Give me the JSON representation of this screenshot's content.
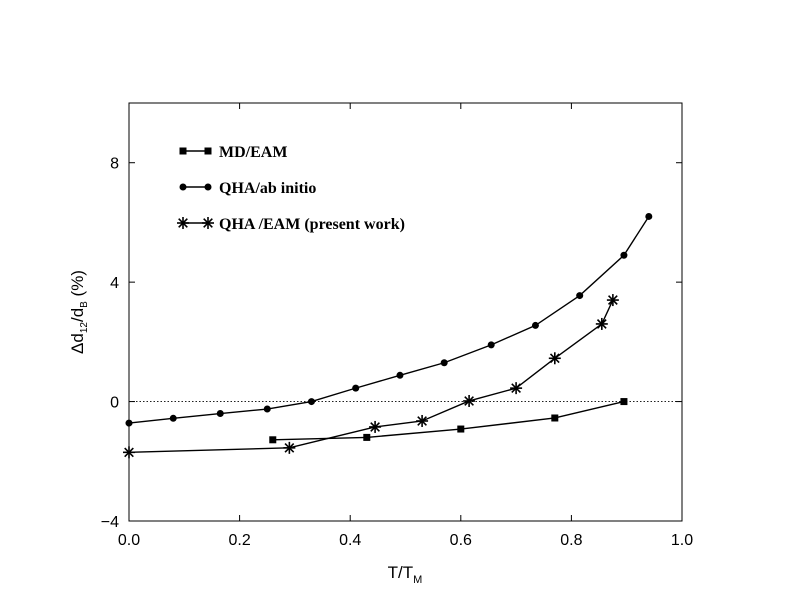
{
  "chart_data": {
    "type": "line",
    "xlabel": {
      "main": "T/T",
      "sub": "M"
    },
    "ylabel": {
      "delta": "Δ",
      "d1": "d",
      "sub1": "12",
      "slash": "/d",
      "sub2": "B",
      "rest": " (%)"
    },
    "xlim": [
      0.0,
      1.0
    ],
    "ylim": [
      -4,
      10
    ],
    "xticks": [
      "0.0",
      "0.2",
      "0.4",
      "0.6",
      "0.8",
      "1.0"
    ],
    "xtick_values": [
      0.0,
      0.2,
      0.4,
      0.6,
      0.8,
      1.0
    ],
    "yticks": [
      "−4",
      "0",
      "4",
      "8"
    ],
    "ytick_values": [
      -4,
      0,
      4,
      8
    ],
    "zero_line": true,
    "grid": false,
    "legend_position": "top-left",
    "series": [
      {
        "name": "MD/EAM",
        "marker": "square",
        "x": [
          0.26,
          0.43,
          0.6,
          0.77,
          0.895
        ],
        "y": [
          -1.28,
          -1.2,
          -0.92,
          -0.55,
          0.0
        ]
      },
      {
        "name": "QHA/ab initio",
        "marker": "circle",
        "x": [
          0.0,
          0.08,
          0.165,
          0.25,
          0.33,
          0.41,
          0.49,
          0.57,
          0.655,
          0.735,
          0.815,
          0.895,
          0.94
        ],
        "y": [
          -0.72,
          -0.56,
          -0.4,
          -0.25,
          0.0,
          0.45,
          0.88,
          1.3,
          1.9,
          2.55,
          3.55,
          4.9,
          6.2
        ]
      },
      {
        "name": "QHA /EAM (present work)",
        "marker": "asterisk",
        "x": [
          0.0,
          0.29,
          0.445,
          0.53,
          0.615,
          0.7,
          0.77,
          0.855,
          0.875
        ],
        "y": [
          -1.7,
          -1.55,
          -0.85,
          -0.65,
          0.02,
          0.45,
          1.45,
          2.6,
          3.4
        ]
      }
    ]
  }
}
